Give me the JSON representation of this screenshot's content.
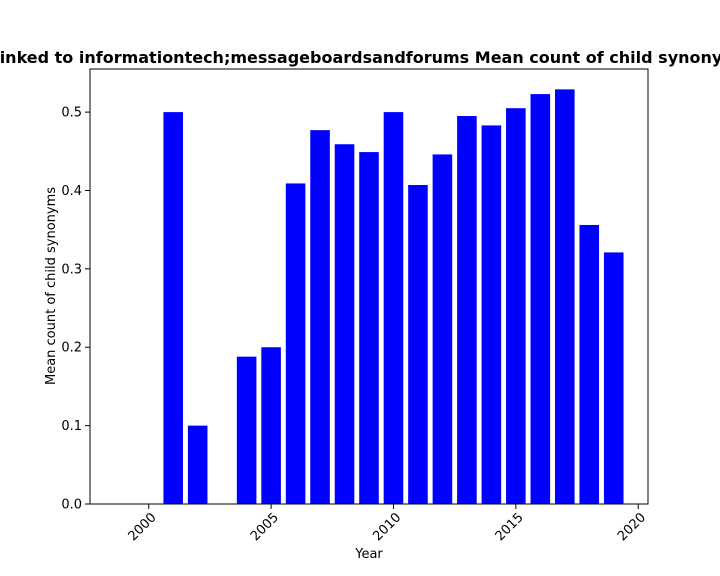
{
  "chart_data": {
    "type": "bar",
    "title": "Linked to informationtech;messageboardsandforums Mean count of child synonyms",
    "xlabel": "Year",
    "ylabel": "Mean count of child synonyms",
    "x": [
      2001,
      2002,
      2004,
      2005,
      2006,
      2007,
      2008,
      2009,
      2010,
      2011,
      2012,
      2013,
      2014,
      2015,
      2016,
      2017,
      2018,
      2019
    ],
    "values": [
      0.5,
      0.1,
      0.188,
      0.2,
      0.409,
      0.477,
      0.459,
      0.449,
      0.5,
      0.407,
      0.446,
      0.495,
      0.483,
      0.505,
      0.523,
      0.529,
      0.356,
      0.321
    ],
    "xlim": [
      1997.6,
      2020.4
    ],
    "ylim": [
      0,
      0.555
    ],
    "xticks": [
      "2000",
      "2005",
      "2010",
      "2015",
      "2020"
    ],
    "yticks": [
      "0.0",
      "0.1",
      "0.2",
      "0.3",
      "0.4",
      "0.5"
    ],
    "bar_color": "#0000ff",
    "grid": false
  }
}
